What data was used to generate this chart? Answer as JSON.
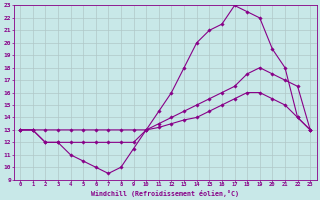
{
  "xlabel": "Windchill (Refroidissement éolien,°C)",
  "background_color": "#c8e8e8",
  "grid_color": "#b0c8c8",
  "line_color": "#880088",
  "xlim": [
    -0.5,
    23.5
  ],
  "ylim": [
    9,
    23
  ],
  "yticks": [
    9,
    10,
    11,
    12,
    13,
    14,
    15,
    16,
    17,
    18,
    19,
    20,
    21,
    22,
    23
  ],
  "xticks": [
    0,
    1,
    2,
    3,
    4,
    5,
    6,
    7,
    8,
    9,
    10,
    11,
    12,
    13,
    14,
    15,
    16,
    17,
    18,
    19,
    20,
    21,
    22,
    23
  ],
  "series": [
    {
      "x": [
        0,
        1,
        2,
        3,
        4,
        5,
        6,
        7,
        8,
        9,
        10,
        11,
        12,
        13,
        14,
        15,
        16,
        17,
        18,
        19,
        20,
        21,
        22,
        23
      ],
      "y": [
        13,
        13,
        12,
        12,
        11,
        10.5,
        10,
        9.5,
        10,
        11.5,
        13,
        13.5,
        14,
        14.5,
        15,
        15.5,
        16,
        16.5,
        17.5,
        18,
        17.5,
        17,
        16.5,
        13
      ]
    },
    {
      "x": [
        0,
        1,
        2,
        3,
        4,
        5,
        6,
        7,
        8,
        9,
        10,
        11,
        12,
        13,
        14,
        15,
        16,
        17,
        18,
        19,
        20,
        21,
        22,
        23
      ],
      "y": [
        13,
        13,
        13,
        13,
        13,
        13,
        13,
        13,
        13,
        13,
        13,
        13.2,
        13.5,
        13.8,
        14,
        14.5,
        15,
        15.5,
        16,
        16,
        15.5,
        15,
        14,
        13
      ]
    },
    {
      "x": [
        0,
        1,
        2,
        3,
        4,
        5,
        6,
        7,
        8,
        9,
        10,
        11,
        12,
        13,
        14,
        15,
        16,
        17,
        18,
        19,
        20,
        21,
        22,
        23
      ],
      "y": [
        13,
        13,
        12,
        12,
        12,
        12,
        12,
        12,
        12,
        12,
        13,
        14.5,
        16,
        18,
        20,
        21,
        21.5,
        23,
        22.5,
        22,
        19.5,
        18,
        14,
        13
      ]
    }
  ]
}
